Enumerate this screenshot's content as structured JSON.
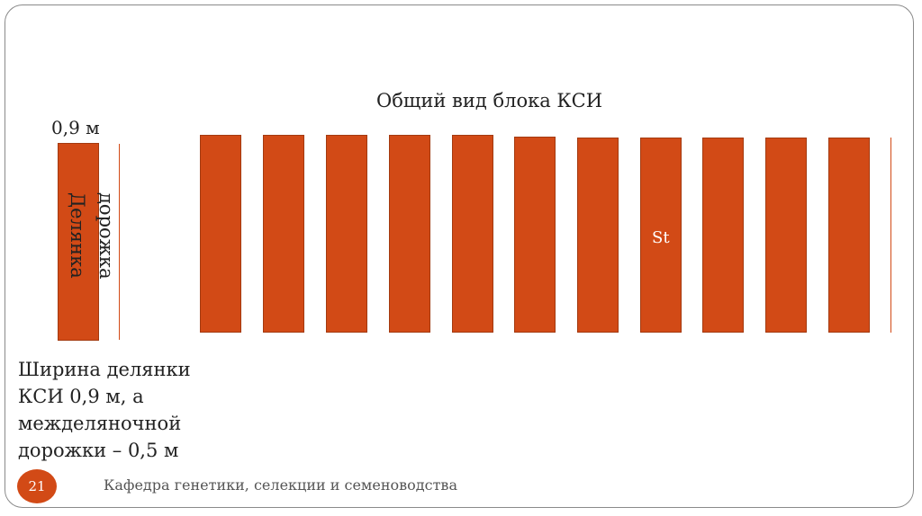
{
  "title": "Общий вид блока КСИ",
  "plot_width_label": "0,9 м",
  "plot_label": "Делянка",
  "path_label": "дорожка",
  "st_label": "St",
  "description_lines": [
    "Ширина делянки",
    "КСИ 0,9 м, а",
    "меж­деляночной",
    "дорожки – 0,5 м"
  ],
  "page_number": "21",
  "footer": "Кафедра генетики, селекции и семеноводства",
  "colors": {
    "plot": "#d24a16",
    "frame": "#8a8a8a"
  },
  "block_plot_count": 11
}
